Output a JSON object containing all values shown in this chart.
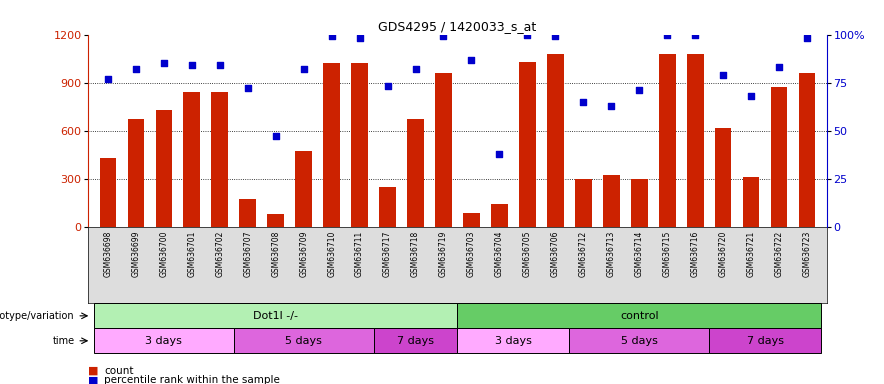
{
  "title": "GDS4295 / 1420033_s_at",
  "samples": [
    "GSM636698",
    "GSM636699",
    "GSM636700",
    "GSM636701",
    "GSM636702",
    "GSM636707",
    "GSM636708",
    "GSM636709",
    "GSM636710",
    "GSM636711",
    "GSM636717",
    "GSM636718",
    "GSM636719",
    "GSM636703",
    "GSM636704",
    "GSM636705",
    "GSM636706",
    "GSM636712",
    "GSM636713",
    "GSM636714",
    "GSM636715",
    "GSM636716",
    "GSM636720",
    "GSM636721",
    "GSM636722",
    "GSM636723"
  ],
  "counts": [
    430,
    670,
    730,
    840,
    840,
    175,
    80,
    470,
    1020,
    1020,
    245,
    670,
    960,
    85,
    140,
    1030,
    1080,
    300,
    325,
    300,
    1080,
    1080,
    615,
    310,
    870,
    960
  ],
  "percentile": [
    77,
    82,
    85,
    84,
    84,
    72,
    47,
    82,
    99,
    98,
    73,
    82,
    99,
    87,
    38,
    100,
    99,
    65,
    63,
    71,
    100,
    100,
    79,
    68,
    83,
    98
  ],
  "ylim_left": [
    0,
    1200
  ],
  "ylim_right": [
    0,
    100
  ],
  "yticks_left": [
    0,
    300,
    600,
    900,
    1200
  ],
  "yticks_right": [
    0,
    25,
    50,
    75,
    100
  ],
  "bar_color": "#cc2200",
  "dot_color": "#0000cc",
  "genotype_groups": [
    {
      "label": "Dot1l -/-",
      "start": 0,
      "end": 12,
      "color": "#b3f0b3"
    },
    {
      "label": "control",
      "start": 13,
      "end": 25,
      "color": "#66cc66"
    }
  ],
  "time_groups": [
    {
      "label": "3 days",
      "start": 0,
      "end": 4,
      "color": "#ffaaff"
    },
    {
      "label": "5 days",
      "start": 5,
      "end": 9,
      "color": "#dd66dd"
    },
    {
      "label": "7 days",
      "start": 10,
      "end": 12,
      "color": "#cc44cc"
    },
    {
      "label": "3 days",
      "start": 13,
      "end": 16,
      "color": "#ffaaff"
    },
    {
      "label": "5 days",
      "start": 17,
      "end": 21,
      "color": "#dd66dd"
    },
    {
      "label": "7 days",
      "start": 22,
      "end": 25,
      "color": "#cc44cc"
    }
  ],
  "genotype_label": "genotype/variation",
  "time_label": "time",
  "legend_count": "count",
  "legend_percentile": "percentile rank within the sample",
  "bar_width": 0.6,
  "xlabel_bg": "#dddddd"
}
